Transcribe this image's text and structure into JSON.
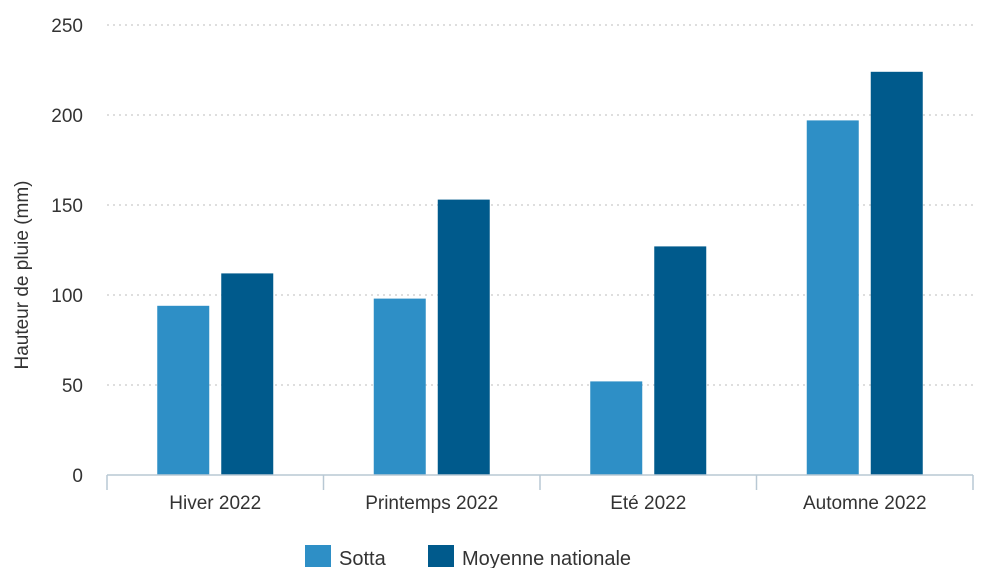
{
  "chart_data": {
    "type": "bar",
    "title": "",
    "xlabel": "",
    "ylabel": "Hauteur de pluie (mm)",
    "categories": [
      "Hiver 2022",
      "Printemps 2022",
      "Eté 2022",
      "Automne 2022"
    ],
    "series": [
      {
        "name": "Sotta",
        "color": "#2e8fc6",
        "values": [
          94,
          98,
          52,
          197
        ]
      },
      {
        "name": "Moyenne nationale",
        "color": "#005a8c",
        "values": [
          112,
          153,
          127,
          224
        ]
      }
    ],
    "ylim": [
      0,
      250
    ],
    "yticks": [
      "0",
      "50",
      "100",
      "150",
      "200",
      "250"
    ],
    "grid": true,
    "grid_style": "dotted",
    "legend_position": "bottom-center",
    "axis_color": "#b8c8d4",
    "grid_color": "#c9c9c9",
    "text_color": "#333333"
  }
}
